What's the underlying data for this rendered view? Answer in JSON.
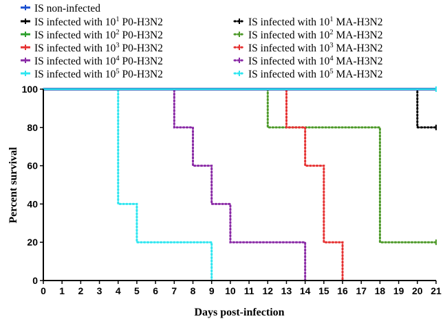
{
  "chart_data": {
    "type": "line",
    "title": "",
    "xlabel": "Days post-infection",
    "ylabel": "Percent survival",
    "xlim": [
      0,
      21
    ],
    "ylim": [
      0,
      100
    ],
    "x_ticks": [
      0,
      1,
      2,
      3,
      4,
      5,
      6,
      7,
      8,
      9,
      10,
      11,
      12,
      13,
      14,
      15,
      16,
      17,
      18,
      19,
      20,
      21
    ],
    "y_ticks": [
      0,
      20,
      40,
      60,
      80,
      100
    ],
    "grid": false,
    "legend_position": "top",
    "series": [
      {
        "name": "IS non-infected",
        "base": "IS non-infected",
        "sup": "",
        "suffix": "",
        "color": "#1a4fd0",
        "dash": "solid",
        "x": [
          0,
          21
        ],
        "y": [
          100,
          100
        ]
      },
      {
        "name": "IS infected with 10^1 P0-H3N2",
        "base": "IS infected with 10",
        "sup": "1",
        "suffix": " P0-H3N2",
        "color": "#000000",
        "dash": "solid",
        "x": [
          0,
          21
        ],
        "y": [
          100,
          100
        ]
      },
      {
        "name": "IS infected with 10^2 P0-H3N2",
        "base": "IS infected with 10",
        "sup": "2",
        "suffix": " P0-H3N2",
        "color": "#2ca02c",
        "dash": "solid",
        "x": [
          0,
          21
        ],
        "y": [
          100,
          100
        ]
      },
      {
        "name": "IS infected with 10^3 P0-H3N2",
        "base": "IS infected with 10",
        "sup": "3",
        "suffix": " P0-H3N2",
        "color": "#e63232",
        "dash": "solid",
        "x": [
          0,
          21
        ],
        "y": [
          100,
          100
        ]
      },
      {
        "name": "IS infected with 10^4 P0-H3N2",
        "base": "IS infected with 10",
        "sup": "4",
        "suffix": " P0-H3N2",
        "color": "#8a2aa6",
        "dash": "solid",
        "x": [
          0,
          21
        ],
        "y": [
          100,
          100
        ]
      },
      {
        "name": "IS infected with 10^5 P0-H3N2",
        "base": "IS infected with 10",
        "sup": "5",
        "suffix": " P0-H3N2",
        "color": "#2ee6f0",
        "dash": "solid",
        "x": [
          0,
          21
        ],
        "y": [
          100,
          100
        ]
      },
      {
        "name": "IS infected with 10^1 MA-H3N2",
        "base": "IS infected with 10",
        "sup": "1",
        "suffix": " MA-H3N2",
        "color": "#000000",
        "dash": "dotted",
        "x": [
          0,
          20,
          21
        ],
        "y": [
          100,
          80,
          80
        ]
      },
      {
        "name": "IS infected with 10^2 MA-H3N2",
        "base": "IS infected with 10",
        "sup": "2",
        "suffix": " MA-H3N2",
        "color": "#4e9a2a",
        "dash": "dotted",
        "x": [
          0,
          12,
          18,
          21
        ],
        "y": [
          100,
          80,
          20,
          20
        ]
      },
      {
        "name": "IS infected with 10^3 MA-H3N2",
        "base": "IS infected with 10",
        "sup": "3",
        "suffix": " MA-H3N2",
        "color": "#e63232",
        "dash": "dotted",
        "x": [
          0,
          13,
          14,
          15,
          16
        ],
        "y": [
          100,
          80,
          60,
          20,
          0
        ]
      },
      {
        "name": "IS infected with 10^4 MA-H3N2",
        "base": "IS infected with 10",
        "sup": "4",
        "suffix": " MA-H3N2",
        "color": "#8a2aa6",
        "dash": "dotted",
        "x": [
          0,
          7,
          8,
          9,
          10,
          14
        ],
        "y": [
          100,
          80,
          60,
          40,
          20,
          0
        ]
      },
      {
        "name": "IS infected with 10^5 MA-H3N2",
        "base": "IS infected with 10",
        "sup": "5",
        "suffix": " MA-H3N2",
        "color": "#2ee6f0",
        "dash": "dotted",
        "x": [
          0,
          4,
          5,
          9
        ],
        "y": [
          100,
          40,
          20,
          0
        ]
      }
    ]
  }
}
